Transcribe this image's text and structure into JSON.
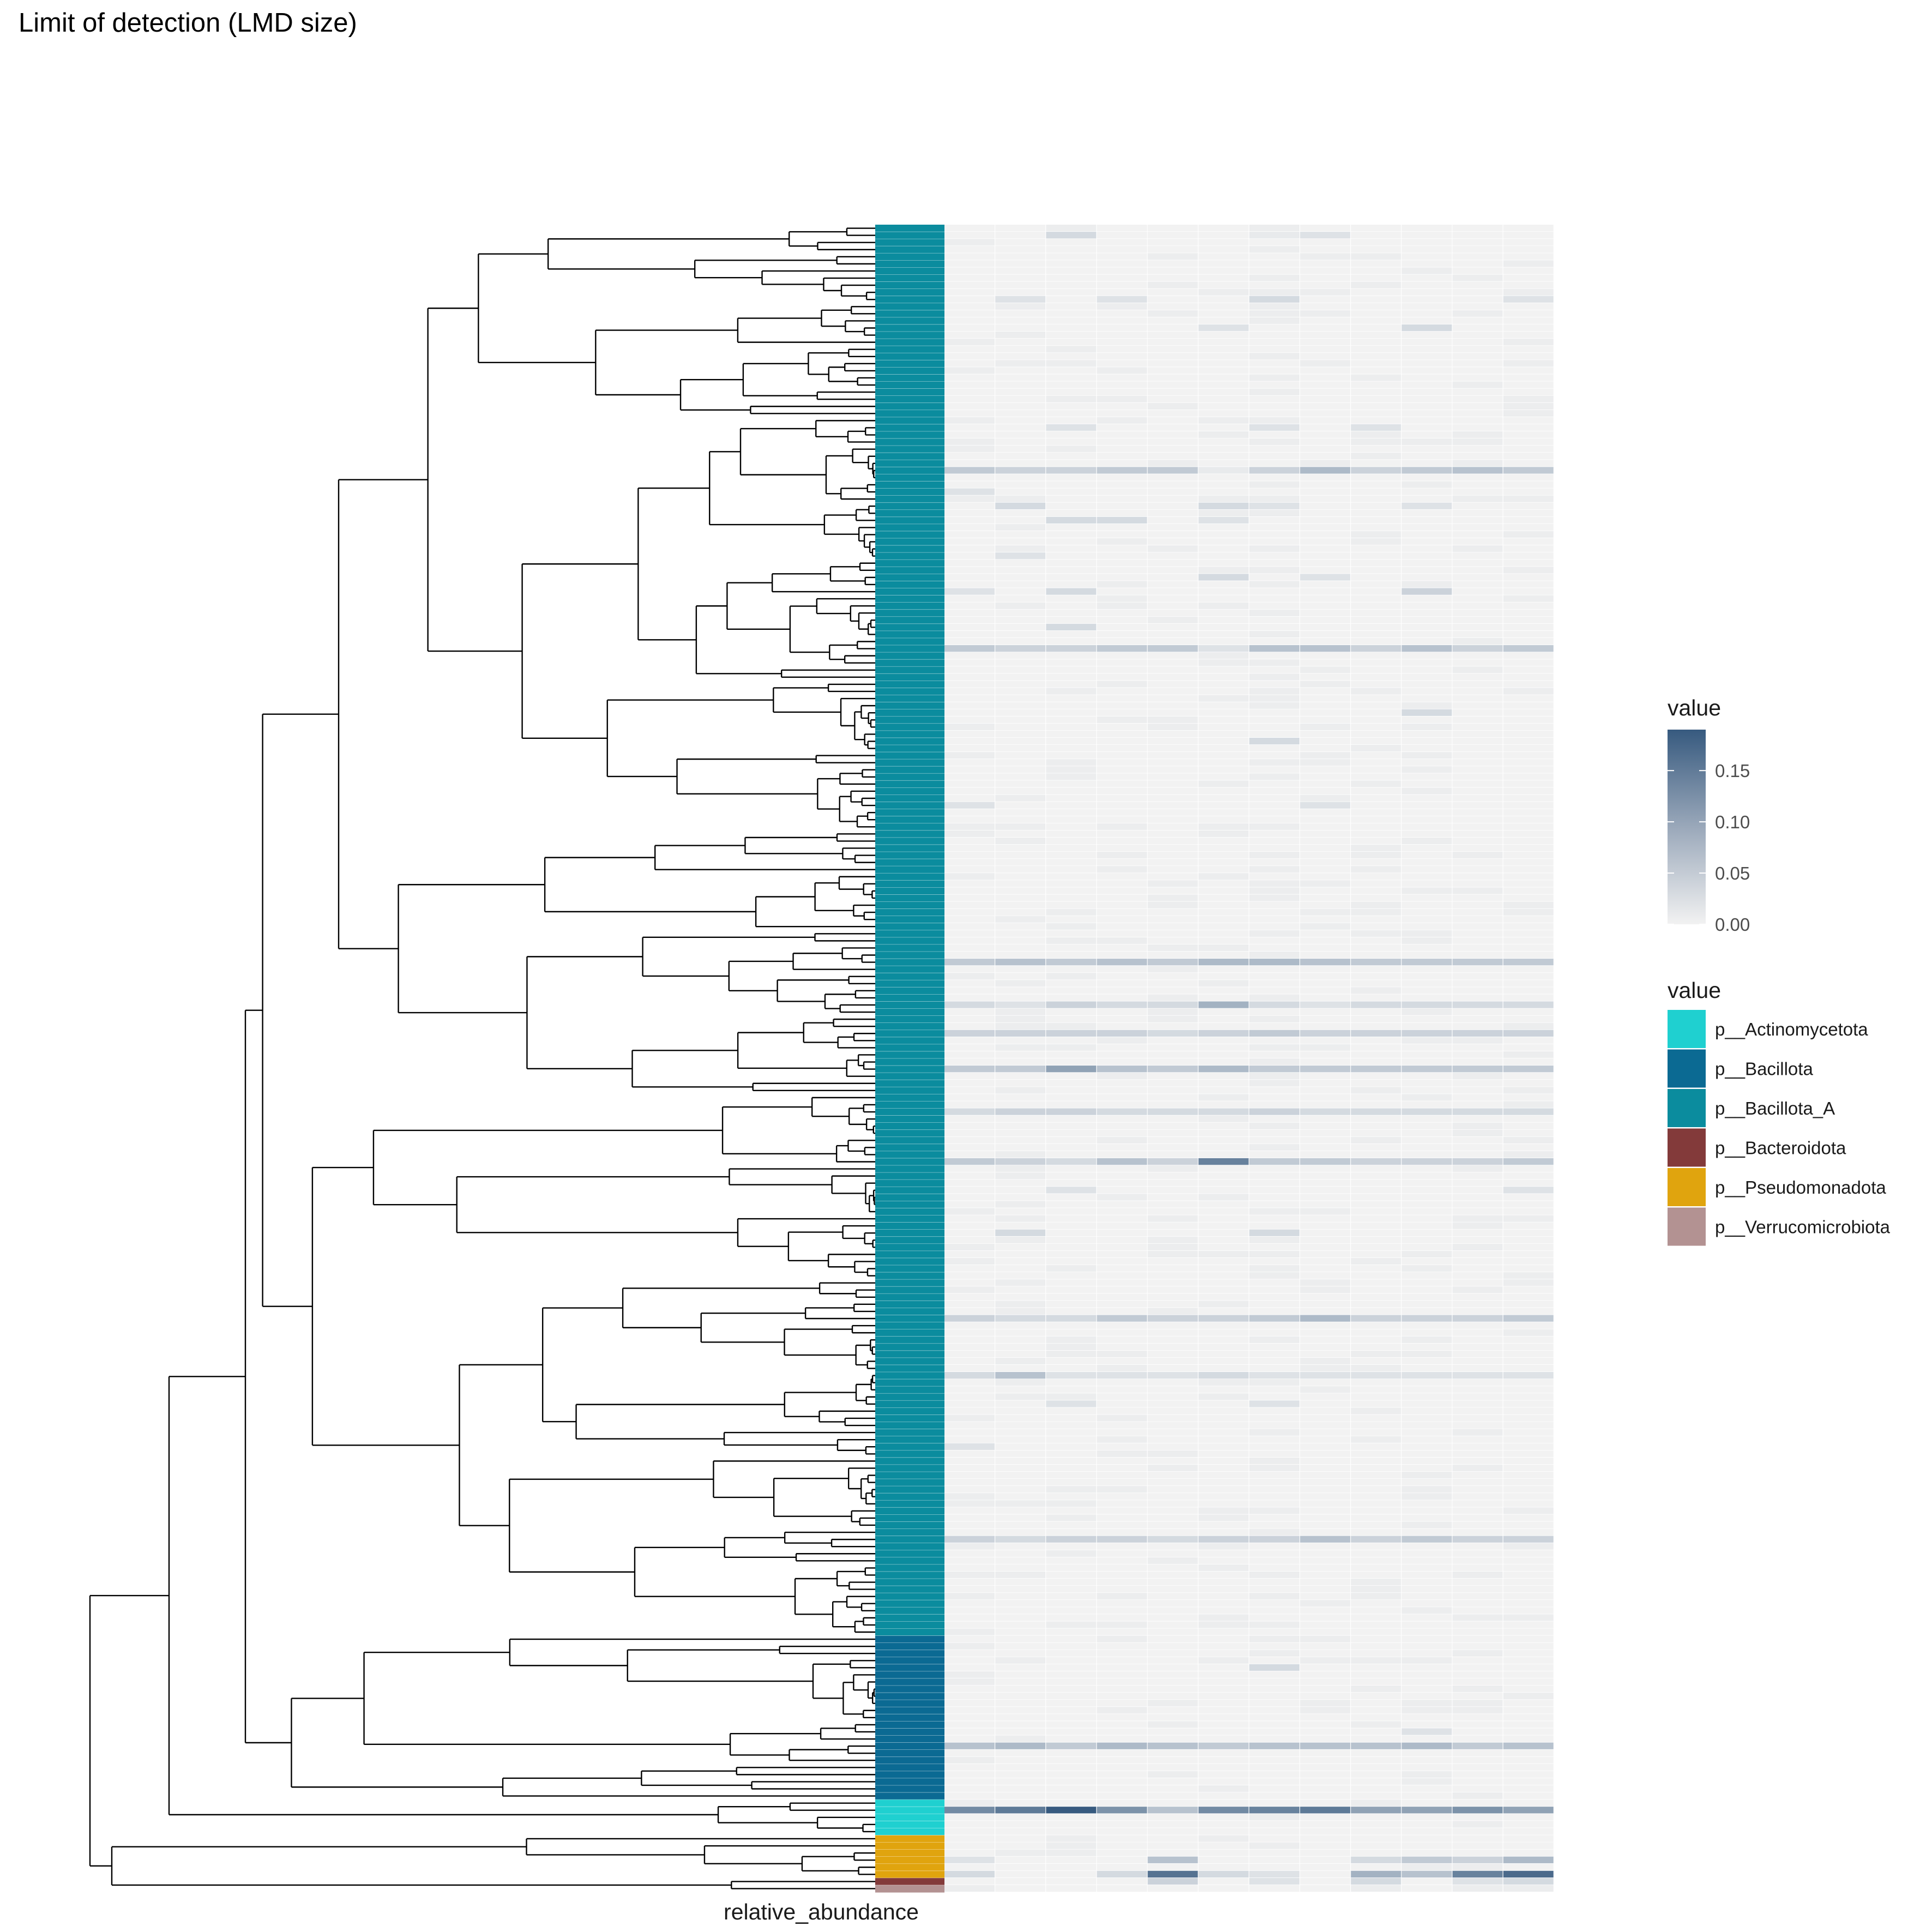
{
  "chart_data": {
    "type": "heatmap",
    "title": "Limit of detection (LMD size)",
    "xlabel": "relative_abundance",
    "n_rows": 234,
    "n_columns": 12,
    "grid": false,
    "tree": "hierarchical clustering dendrogram of rows (left)",
    "continuous_legend": {
      "title": "value",
      "ticks": [
        0.0,
        0.05,
        0.1,
        0.15
      ],
      "tick_labels": [
        "0.00",
        "0.05",
        "0.10",
        "0.15"
      ],
      "range": [
        0,
        0.19
      ],
      "low_color": "#f2f2f2",
      "high_color": "#375a7f"
    },
    "phylum_legend": {
      "title": "value",
      "items": [
        {
          "label": "p__Actinomycetota",
          "color": "#1fd0d0"
        },
        {
          "label": "p__Bacillota",
          "color": "#0b6a93"
        },
        {
          "label": "p__Bacillota_A",
          "color": "#0b8c9e"
        },
        {
          "label": "p__Bacteroidota",
          "color": "#833a3a"
        },
        {
          "label": "p__Pseudomonadota",
          "color": "#e0a40e"
        },
        {
          "label": "p__Verrucomicrobiota",
          "color": "#b39292"
        }
      ]
    },
    "row_phylum_blocks": [
      {
        "phylum": "p__Bacillota_A",
        "rows": 198
      },
      {
        "phylum": "p__Bacillota",
        "rows": 23
      },
      {
        "phylum": "p__Actinomycetota",
        "rows": 5
      },
      {
        "phylum": "p__Pseudomonadota",
        "rows": 6
      },
      {
        "phylum": "p__Bacteroidota",
        "rows": 1
      },
      {
        "phylum": "p__Verrucomicrobiota",
        "rows": 1
      }
    ],
    "highlight_rows": [
      {
        "row": 1,
        "values": [
          0.0,
          0.0,
          0.03,
          0.0,
          0.0,
          0.0,
          0.01,
          0.02,
          0.0,
          0.0,
          0.0,
          0.0
        ]
      },
      {
        "row": 10,
        "values": [
          0.0,
          0.02,
          0.0,
          0.02,
          0.0,
          0.0,
          0.03,
          0.0,
          0.0,
          0.0,
          0.0,
          0.02
        ]
      },
      {
        "row": 14,
        "values": [
          0.0,
          0.0,
          0.0,
          0.0,
          0.0,
          0.02,
          0.0,
          0.0,
          0.0,
          0.03,
          0.0,
          0.0
        ]
      },
      {
        "row": 28,
        "values": [
          0.0,
          0.0,
          0.02,
          0.0,
          0.0,
          0.0,
          0.02,
          0.0,
          0.02,
          0.0,
          0.0,
          0.0
        ]
      },
      {
        "row": 34,
        "values": [
          0.05,
          0.04,
          0.04,
          0.05,
          0.05,
          0.01,
          0.04,
          0.07,
          0.04,
          0.05,
          0.06,
          0.05
        ]
      },
      {
        "row": 37,
        "values": [
          0.02,
          0.0,
          0.0,
          0.0,
          0.0,
          0.0,
          0.0,
          0.0,
          0.0,
          0.0,
          0.0,
          0.0
        ]
      },
      {
        "row": 39,
        "values": [
          0.0,
          0.03,
          0.0,
          0.0,
          0.0,
          0.03,
          0.02,
          0.0,
          0.0,
          0.02,
          0.0,
          0.0
        ]
      },
      {
        "row": 41,
        "values": [
          0.0,
          0.0,
          0.03,
          0.03,
          0.0,
          0.02,
          0.0,
          0.0,
          0.0,
          0.0,
          0.0,
          0.0
        ]
      },
      {
        "row": 46,
        "values": [
          0.0,
          0.02,
          0.0,
          0.0,
          0.0,
          0.0,
          0.0,
          0.0,
          0.0,
          0.0,
          0.0,
          0.0
        ]
      },
      {
        "row": 49,
        "values": [
          0.0,
          0.0,
          0.0,
          0.0,
          0.0,
          0.03,
          0.0,
          0.02,
          0.0,
          0.0,
          0.0,
          0.0
        ]
      },
      {
        "row": 51,
        "values": [
          0.02,
          0.0,
          0.03,
          0.0,
          0.0,
          0.0,
          0.0,
          0.0,
          0.0,
          0.04,
          0.0,
          0.0
        ]
      },
      {
        "row": 56,
        "values": [
          0.0,
          0.0,
          0.03,
          0.0,
          0.0,
          0.0,
          0.0,
          0.0,
          0.0,
          0.0,
          0.0,
          0.0
        ]
      },
      {
        "row": 59,
        "values": [
          0.05,
          0.04,
          0.04,
          0.05,
          0.05,
          0.02,
          0.06,
          0.06,
          0.04,
          0.06,
          0.04,
          0.05
        ]
      },
      {
        "row": 68,
        "values": [
          0.0,
          0.0,
          0.0,
          0.0,
          0.0,
          0.0,
          0.0,
          0.0,
          0.0,
          0.03,
          0.0,
          0.0
        ]
      },
      {
        "row": 72,
        "values": [
          0.0,
          0.0,
          0.0,
          0.0,
          0.0,
          0.0,
          0.03,
          0.0,
          0.0,
          0.0,
          0.0,
          0.0
        ]
      },
      {
        "row": 81,
        "values": [
          0.02,
          0.0,
          0.0,
          0.0,
          0.0,
          0.0,
          0.0,
          0.02,
          0.0,
          0.0,
          0.0,
          0.0
        ]
      },
      {
        "row": 103,
        "values": [
          0.05,
          0.06,
          0.05,
          0.06,
          0.05,
          0.07,
          0.07,
          0.06,
          0.05,
          0.05,
          0.05,
          0.05
        ]
      },
      {
        "row": 109,
        "values": [
          0.03,
          0.02,
          0.04,
          0.03,
          0.03,
          0.08,
          0.03,
          0.02,
          0.03,
          0.03,
          0.03,
          0.03
        ]
      },
      {
        "row": 113,
        "values": [
          0.04,
          0.04,
          0.04,
          0.04,
          0.03,
          0.04,
          0.05,
          0.04,
          0.04,
          0.04,
          0.04,
          0.04
        ]
      },
      {
        "row": 118,
        "values": [
          0.05,
          0.05,
          0.1,
          0.06,
          0.05,
          0.07,
          0.05,
          0.05,
          0.05,
          0.05,
          0.05,
          0.05
        ]
      },
      {
        "row": 124,
        "values": [
          0.03,
          0.04,
          0.04,
          0.03,
          0.03,
          0.03,
          0.04,
          0.03,
          0.03,
          0.03,
          0.03,
          0.03
        ]
      },
      {
        "row": 131,
        "values": [
          0.05,
          0.04,
          0.03,
          0.06,
          0.04,
          0.14,
          0.05,
          0.05,
          0.04,
          0.04,
          0.04,
          0.05
        ]
      },
      {
        "row": 135,
        "values": [
          0.0,
          0.0,
          0.02,
          0.0,
          0.0,
          0.0,
          0.0,
          0.0,
          0.0,
          0.0,
          0.0,
          0.02
        ]
      },
      {
        "row": 141,
        "values": [
          0.0,
          0.03,
          0.0,
          0.0,
          0.0,
          0.0,
          0.03,
          0.0,
          0.0,
          0.0,
          0.0,
          0.0
        ]
      },
      {
        "row": 153,
        "values": [
          0.04,
          0.03,
          0.03,
          0.05,
          0.04,
          0.04,
          0.05,
          0.07,
          0.04,
          0.04,
          0.04,
          0.05
        ]
      },
      {
        "row": 161,
        "values": [
          0.03,
          0.06,
          0.02,
          0.02,
          0.02,
          0.03,
          0.02,
          0.02,
          0.02,
          0.02,
          0.02,
          0.02
        ]
      },
      {
        "row": 165,
        "values": [
          0.0,
          0.0,
          0.02,
          0.0,
          0.0,
          0.0,
          0.02,
          0.0,
          0.0,
          0.0,
          0.0,
          0.0
        ]
      },
      {
        "row": 171,
        "values": [
          0.02,
          0.0,
          0.0,
          0.0,
          0.0,
          0.0,
          0.0,
          0.0,
          0.0,
          0.0,
          0.0,
          0.0
        ]
      },
      {
        "row": 184,
        "values": [
          0.04,
          0.03,
          0.04,
          0.04,
          0.03,
          0.04,
          0.04,
          0.06,
          0.04,
          0.05,
          0.04,
          0.04
        ]
      },
      {
        "row": 202,
        "values": [
          0.0,
          0.0,
          0.0,
          0.0,
          0.0,
          0.0,
          0.03,
          0.0,
          0.0,
          0.0,
          0.0,
          0.0
        ]
      },
      {
        "row": 211,
        "values": [
          0.0,
          0.0,
          0.0,
          0.0,
          0.0,
          0.0,
          0.0,
          0.0,
          0.0,
          0.02,
          0.0,
          0.0
        ]
      },
      {
        "row": 213,
        "values": [
          0.06,
          0.07,
          0.05,
          0.07,
          0.06,
          0.05,
          0.06,
          0.06,
          0.06,
          0.07,
          0.05,
          0.06
        ]
      },
      {
        "row": 222,
        "values": [
          0.13,
          0.15,
          0.19,
          0.12,
          0.06,
          0.13,
          0.14,
          0.15,
          0.1,
          0.1,
          0.12,
          0.1
        ]
      },
      {
        "row": 229,
        "values": [
          0.02,
          0.0,
          0.0,
          0.0,
          0.06,
          0.0,
          0.0,
          0.0,
          0.03,
          0.05,
          0.04,
          0.07
        ]
      },
      {
        "row": 231,
        "values": [
          0.03,
          0.0,
          0.0,
          0.03,
          0.16,
          0.03,
          0.02,
          0.0,
          0.08,
          0.06,
          0.14,
          0.17
        ]
      },
      {
        "row": 232,
        "values": [
          0.0,
          0.0,
          0.0,
          0.0,
          0.04,
          0.0,
          0.02,
          0.0,
          0.03,
          0.0,
          0.02,
          0.03
        ]
      }
    ]
  }
}
